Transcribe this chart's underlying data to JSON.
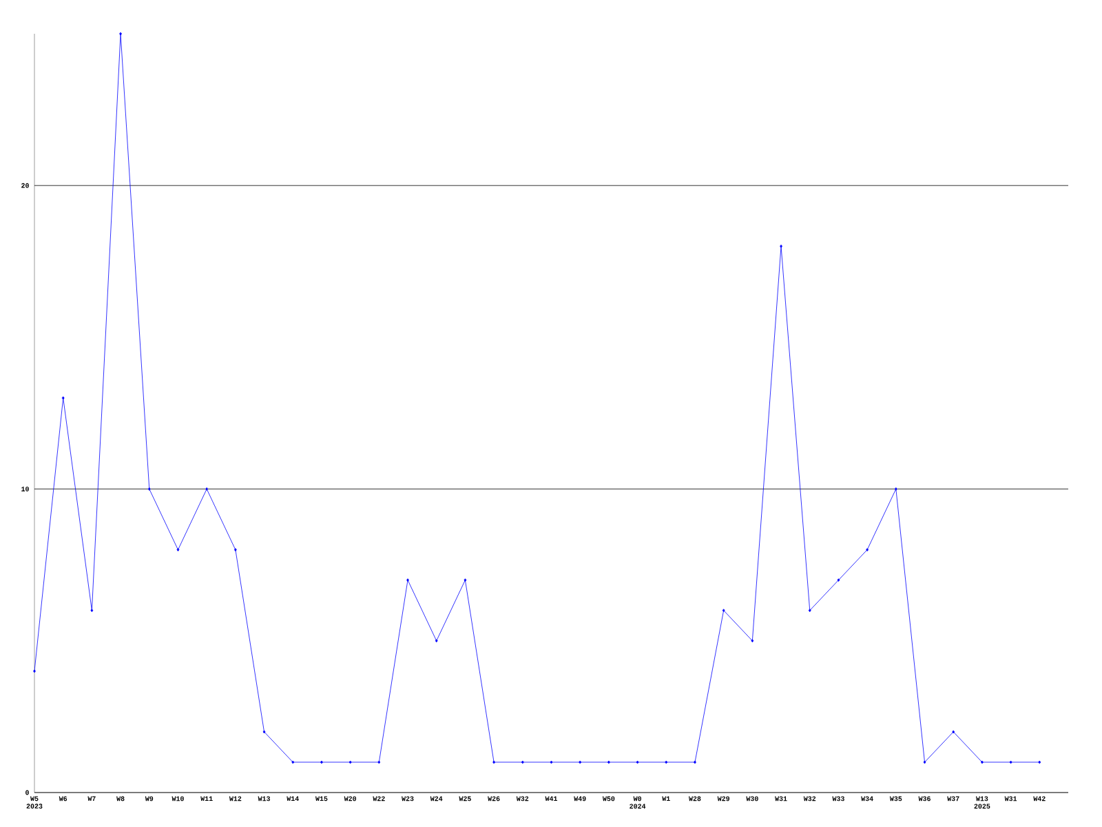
{
  "chart_data": {
    "type": "line",
    "categories": [
      "W5 2023",
      "W6",
      "W7",
      "W8",
      "W9",
      "W10",
      "W11",
      "W12",
      "W13",
      "W14",
      "W15",
      "W20",
      "W22",
      "W23",
      "W24",
      "W25",
      "W26",
      "W32",
      "W41",
      "W49",
      "W50",
      "W0 2024",
      "W1",
      "W28",
      "W29",
      "W30",
      "W31",
      "W32",
      "W33",
      "W34",
      "W35",
      "W36",
      "W37",
      "W13 2025",
      "W31",
      "W42"
    ],
    "values": [
      4,
      13,
      6,
      25,
      10,
      8,
      10,
      8,
      2,
      1,
      1,
      1,
      1,
      7,
      5,
      7,
      1,
      1,
      1,
      1,
      1,
      1,
      1,
      1,
      6,
      5,
      18,
      6,
      7,
      8,
      10,
      1,
      2,
      1,
      1,
      1
    ],
    "color": "#0000ff",
    "ylim": [
      0,
      25
    ],
    "yticks": [
      0,
      10,
      20
    ],
    "grid": "y",
    "marker": "diamond",
    "line_style": "solid"
  }
}
